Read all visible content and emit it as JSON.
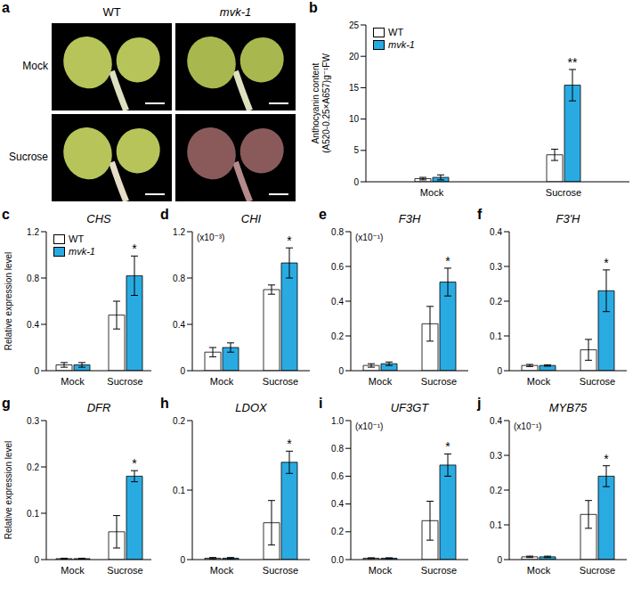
{
  "image_panel": {
    "panel": "a",
    "columns": [
      "WT",
      "mvk-1"
    ],
    "rows": [
      "Mock",
      "Sucrose"
    ]
  },
  "chart_data": [
    {
      "panel": "b",
      "type": "bar",
      "y_label": "Anthocyanin content (A520-0.25×A657)g⁻¹FW",
      "categories": [
        "Mock",
        "Sucrose"
      ],
      "series": [
        {
          "name": "WT",
          "color": "#ffffff",
          "values": [
            0.5,
            4.3
          ],
          "errors": [
            0.2,
            0.9
          ]
        },
        {
          "name": "mvk-1",
          "color": "#29abe2",
          "values": [
            0.7,
            15.4
          ],
          "errors": [
            0.4,
            2.5
          ],
          "significance": [
            null,
            "**"
          ]
        }
      ],
      "ylim": [
        0,
        25
      ],
      "yticks": [
        0,
        5,
        10,
        15,
        20,
        25
      ],
      "legend": "upper left"
    },
    {
      "panel": "c",
      "type": "bar",
      "title": "CHS",
      "y_label": "Relative expression level",
      "categories": [
        "Mock",
        "Sucrose"
      ],
      "series": [
        {
          "name": "WT",
          "color": "#ffffff",
          "values": [
            0.05,
            0.48
          ],
          "errors": [
            0.02,
            0.12
          ]
        },
        {
          "name": "mvk-1",
          "color": "#29abe2",
          "values": [
            0.05,
            0.82
          ],
          "errors": [
            0.02,
            0.17
          ],
          "significance": [
            null,
            "*"
          ]
        }
      ],
      "ylim": [
        0,
        1.2
      ],
      "yticks": [
        0,
        0.4,
        0.8,
        1.2
      ],
      "legend": "upper left"
    },
    {
      "panel": "d",
      "type": "bar",
      "title": "CHI",
      "annotation": "(x10⁻³)",
      "categories": [
        "Mock",
        "Sucrose"
      ],
      "series": [
        {
          "name": "WT",
          "color": "#ffffff",
          "values": [
            0.16,
            0.7
          ],
          "errors": [
            0.04,
            0.04
          ]
        },
        {
          "name": "mvk-1",
          "color": "#29abe2",
          "values": [
            0.2,
            0.93
          ],
          "errors": [
            0.04,
            0.13
          ],
          "significance": [
            null,
            "*"
          ]
        }
      ],
      "ylim": [
        0,
        1.2
      ],
      "yticks": [
        0,
        0.4,
        0.8,
        1.2
      ]
    },
    {
      "panel": "e",
      "type": "bar",
      "title": "F3H",
      "annotation": "(x10⁻¹)",
      "categories": [
        "Mock",
        "Sucrose"
      ],
      "series": [
        {
          "name": "WT",
          "color": "#ffffff",
          "values": [
            0.03,
            0.27
          ],
          "errors": [
            0.01,
            0.1
          ]
        },
        {
          "name": "mvk-1",
          "color": "#29abe2",
          "values": [
            0.04,
            0.51
          ],
          "errors": [
            0.01,
            0.08
          ],
          "significance": [
            null,
            "*"
          ]
        }
      ],
      "ylim": [
        0,
        0.8
      ],
      "yticks": [
        0,
        0.2,
        0.4,
        0.6,
        0.8
      ]
    },
    {
      "panel": "f",
      "type": "bar",
      "title": "F3'H",
      "categories": [
        "Mock",
        "Sucrose"
      ],
      "series": [
        {
          "name": "WT",
          "color": "#ffffff",
          "values": [
            0.015,
            0.06
          ],
          "errors": [
            0.003,
            0.03
          ]
        },
        {
          "name": "mvk-1",
          "color": "#29abe2",
          "values": [
            0.015,
            0.23
          ],
          "errors": [
            0.002,
            0.06
          ],
          "significance": [
            null,
            "*"
          ]
        }
      ],
      "ylim": [
        0,
        0.4
      ],
      "yticks": [
        0,
        0.1,
        0.2,
        0.3,
        0.4
      ]
    },
    {
      "panel": "g",
      "type": "bar",
      "title": "DFR",
      "y_label": "Relative expression level",
      "categories": [
        "Mock",
        "Sucrose"
      ],
      "series": [
        {
          "name": "WT",
          "color": "#ffffff",
          "values": [
            0.002,
            0.06
          ],
          "errors": [
            0.001,
            0.035
          ]
        },
        {
          "name": "mvk-1",
          "color": "#29abe2",
          "values": [
            0.002,
            0.18
          ],
          "errors": [
            0.001,
            0.012
          ],
          "significance": [
            null,
            "*"
          ]
        }
      ],
      "ylim": [
        0,
        0.3
      ],
      "yticks": [
        0,
        0.1,
        0.2,
        0.3
      ]
    },
    {
      "panel": "h",
      "type": "bar",
      "title": "LDOX",
      "categories": [
        "Mock",
        "Sucrose"
      ],
      "series": [
        {
          "name": "WT",
          "color": "#ffffff",
          "values": [
            0.002,
            0.053
          ],
          "errors": [
            0.001,
            0.032
          ]
        },
        {
          "name": "mvk-1",
          "color": "#29abe2",
          "values": [
            0.002,
            0.14
          ],
          "errors": [
            0.001,
            0.016
          ],
          "significance": [
            null,
            "*"
          ]
        }
      ],
      "ylim": [
        0,
        0.2
      ],
      "yticks": [
        0,
        0.1,
        0.2
      ]
    },
    {
      "panel": "i",
      "type": "bar",
      "title": "UF3GT",
      "annotation": "(x10⁻¹)",
      "categories": [
        "Mock",
        "Sucrose"
      ],
      "series": [
        {
          "name": "WT",
          "color": "#ffffff",
          "values": [
            0.01,
            0.28
          ],
          "errors": [
            0.003,
            0.14
          ]
        },
        {
          "name": "mvk-1",
          "color": "#29abe2",
          "values": [
            0.01,
            0.68
          ],
          "errors": [
            0.003,
            0.08
          ],
          "significance": [
            null,
            "*"
          ]
        }
      ],
      "ylim": [
        0,
        1.0
      ],
      "yticks": [
        {
          "value": 0,
          "label": "0.0"
        },
        0.2,
        0.4,
        0.6,
        0.8,
        {
          "value": 1,
          "label": "1.0"
        }
      ]
    },
    {
      "panel": "j",
      "type": "bar",
      "title": "MYB75",
      "annotation": "(x10⁻¹)",
      "categories": [
        "Mock",
        "Sucrose"
      ],
      "series": [
        {
          "name": "WT",
          "color": "#ffffff",
          "values": [
            0.008,
            0.13
          ],
          "errors": [
            0.002,
            0.04
          ]
        },
        {
          "name": "mvk-1",
          "color": "#29abe2",
          "values": [
            0.008,
            0.24
          ],
          "errors": [
            0.002,
            0.03
          ],
          "significance": [
            null,
            "*"
          ]
        }
      ],
      "ylim": [
        0,
        0.4
      ],
      "yticks": [
        0,
        0.1,
        0.2,
        0.3,
        0.4
      ]
    }
  ]
}
